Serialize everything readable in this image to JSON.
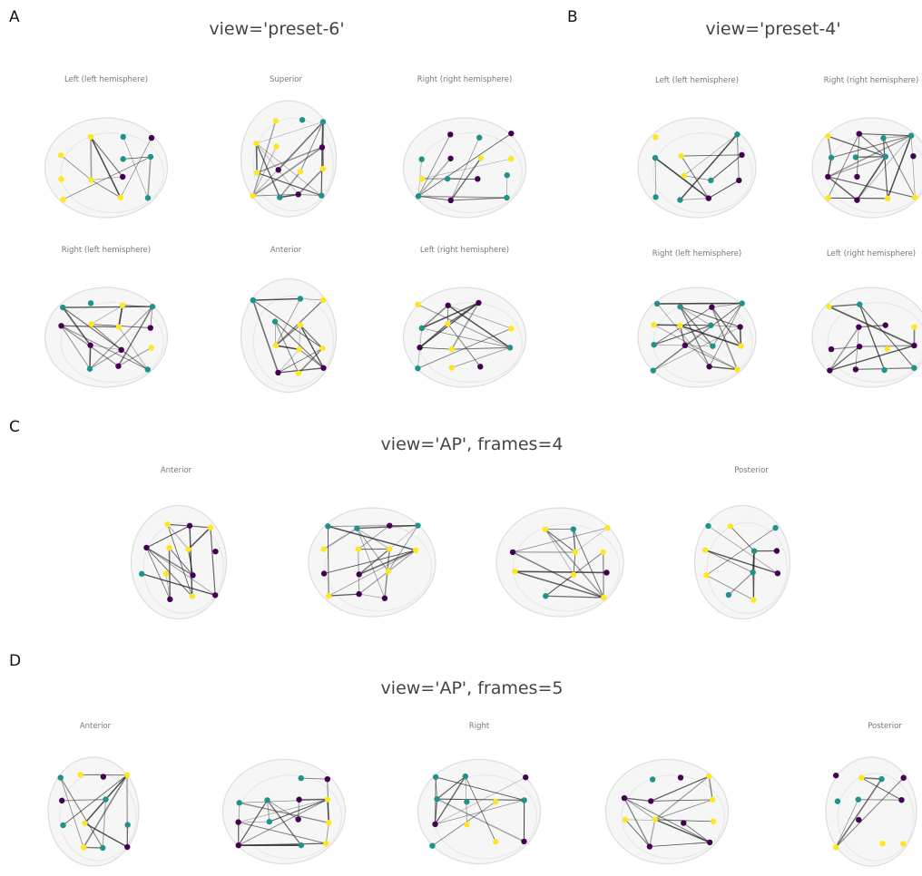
{
  "panels": [
    {
      "letter": "A",
      "title": "view='preset-6'",
      "views": [
        "Left (left hemisphere)",
        "Superior",
        "Right (right hemisphere)",
        "Right (left hemisphere)",
        "Anterior",
        "Left (right hemisphere)"
      ]
    },
    {
      "letter": "B",
      "title": "view='preset-4'",
      "views": [
        "Left (left hemisphere)",
        "Right (right hemisphere)",
        "Right (left hemisphere)",
        "Left (right hemisphere)"
      ]
    },
    {
      "letter": "C",
      "title": "view='AP', frames=4",
      "views": [
        "Anterior",
        "Posterior"
      ]
    },
    {
      "letter": "D",
      "title": "view='AP', frames=5",
      "views": [
        "Anterior",
        "Right",
        "Posterior"
      ]
    }
  ]
}
